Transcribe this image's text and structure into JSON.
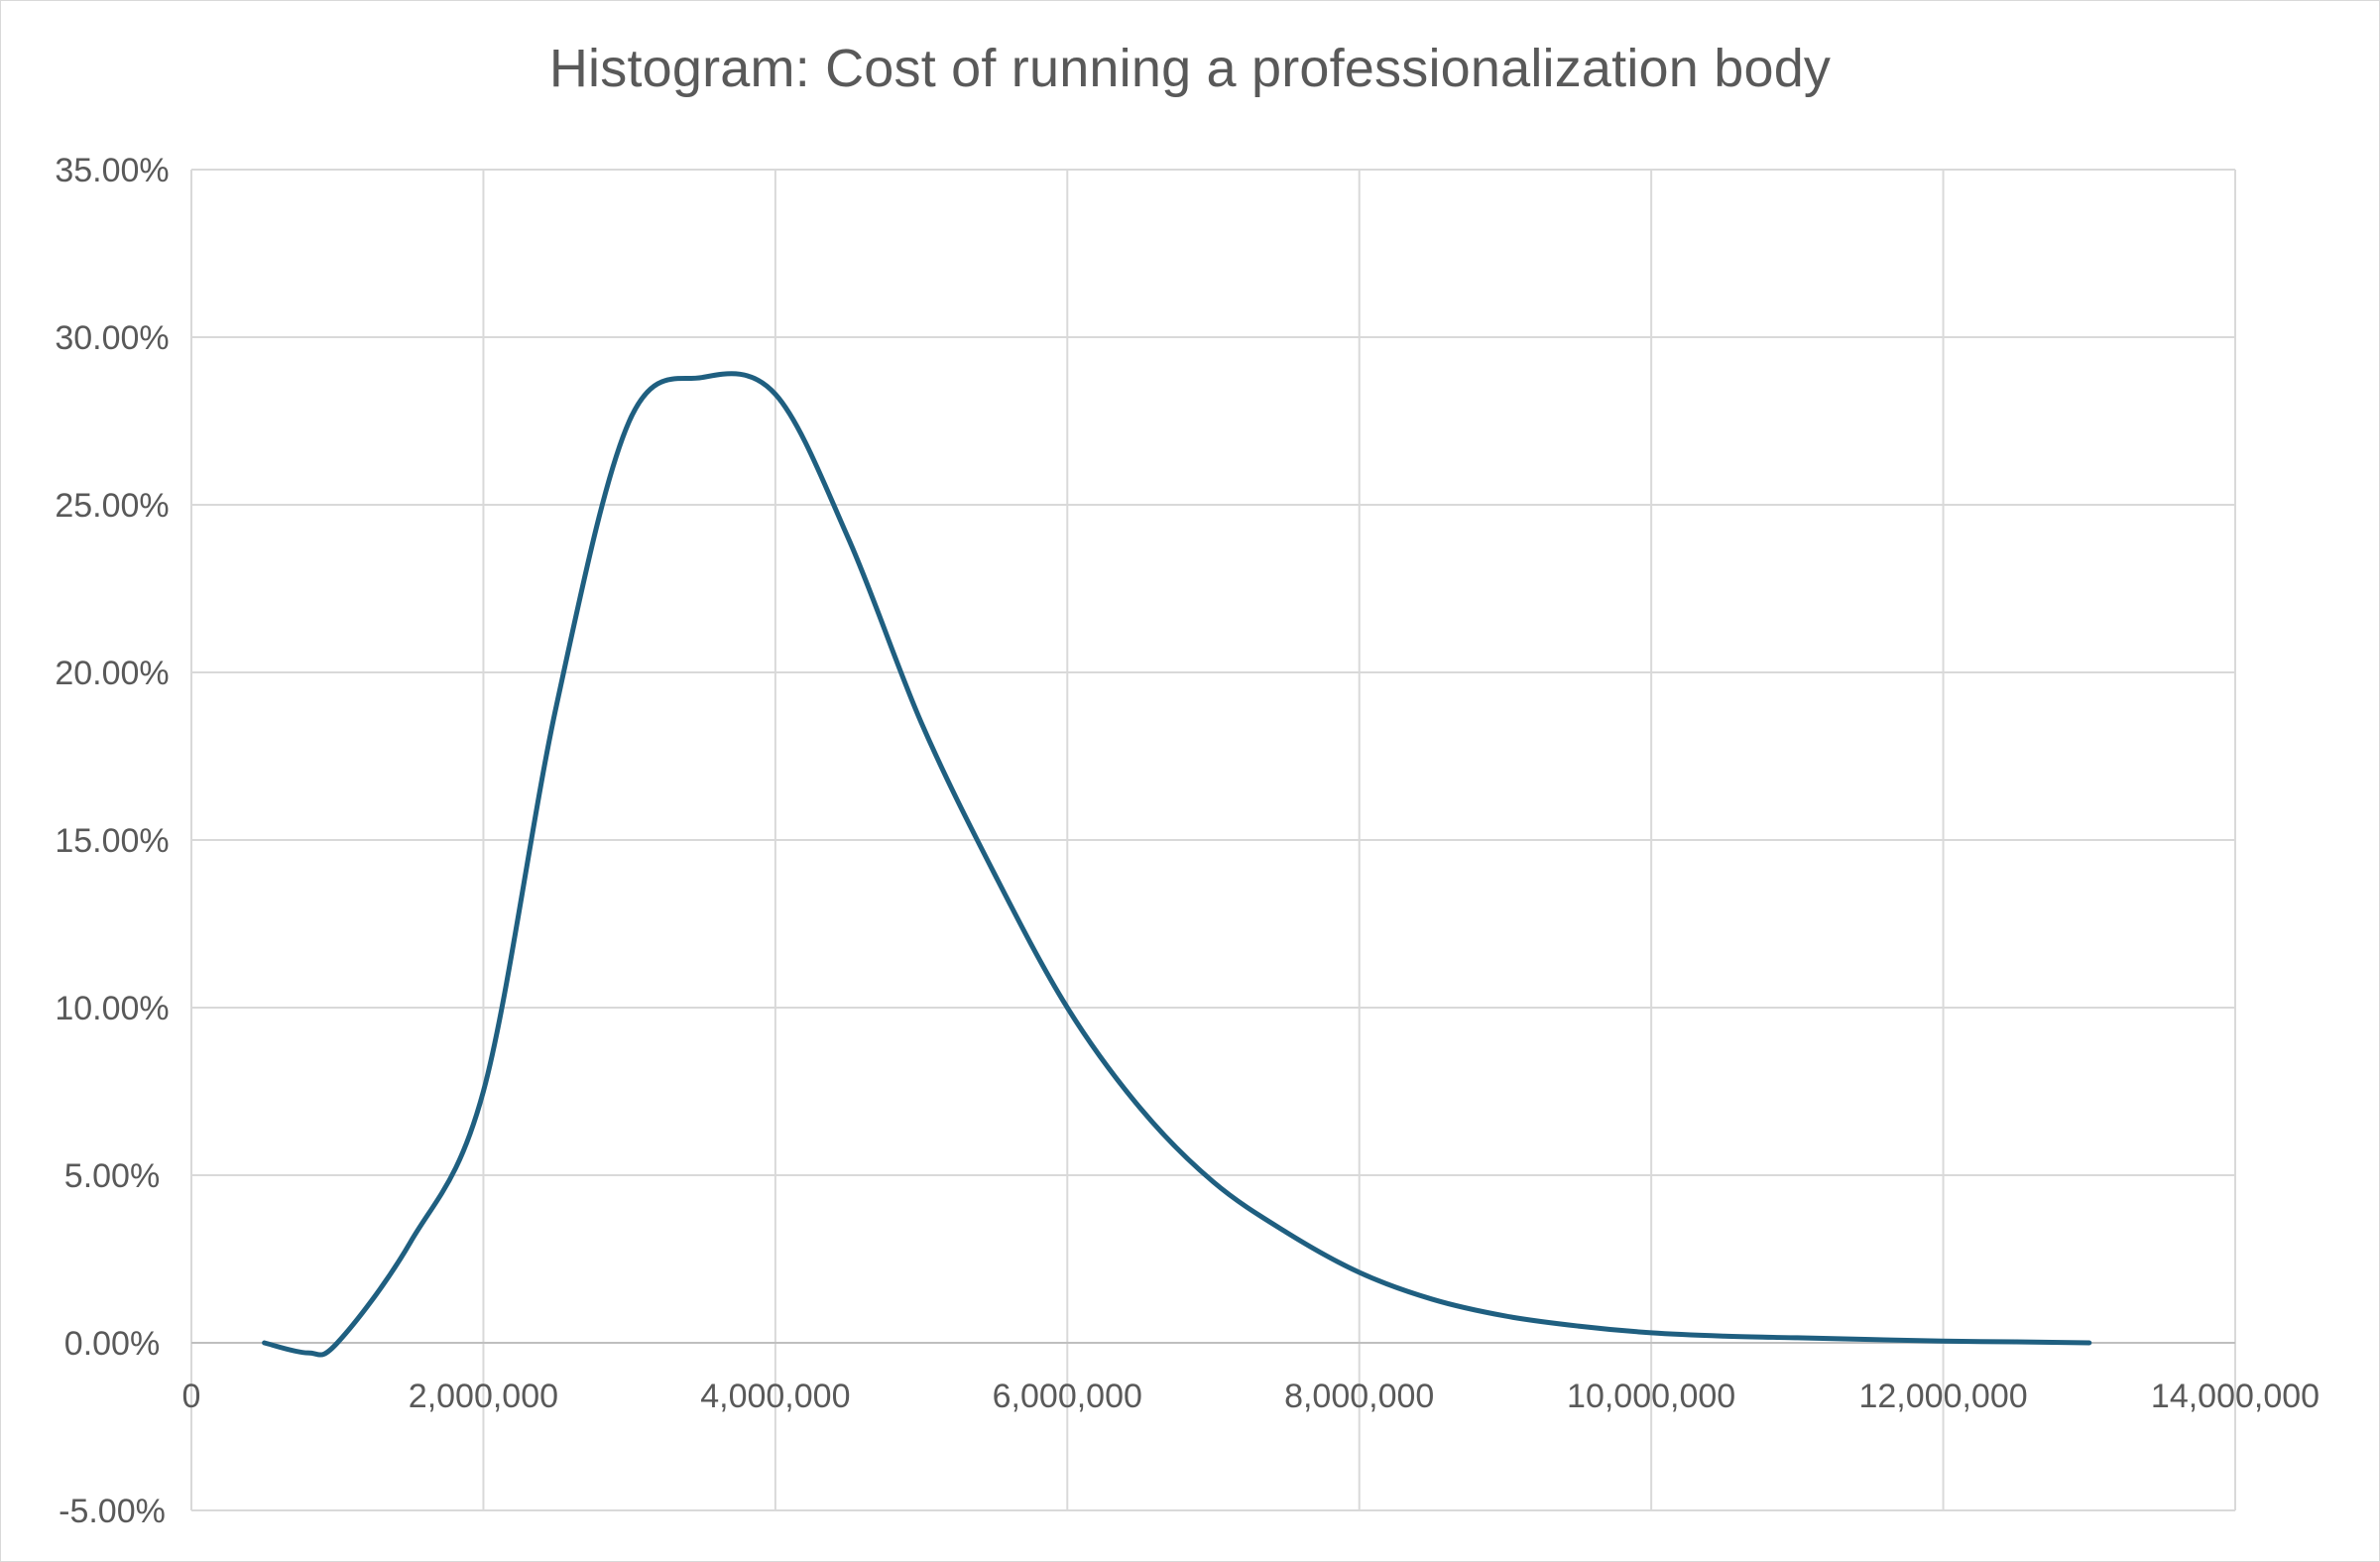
{
  "chart_data": {
    "type": "line",
    "title": "Histogram: Cost of running a professionalization body",
    "xlabel": "",
    "ylabel": "",
    "xlim": [
      0,
      14000000
    ],
    "ylim": [
      -0.05,
      0.35
    ],
    "x_ticks": [
      0,
      2000000,
      4000000,
      6000000,
      8000000,
      10000000,
      12000000,
      14000000
    ],
    "x_tick_labels": [
      "0",
      "2,000,000",
      "4,000,000",
      "6,000,000",
      "8,000,000",
      "10,000,000",
      "12,000,000",
      "14,000,000"
    ],
    "y_ticks": [
      -0.05,
      0,
      0.05,
      0.1,
      0.15,
      0.2,
      0.25,
      0.3,
      0.35
    ],
    "y_tick_labels": [
      "-5.00%",
      "0.00%",
      "5.00%",
      "10.00%",
      "15.00%",
      "20.00%",
      "25.00%",
      "30.00%",
      "35.00%"
    ],
    "grid": true,
    "legend": "none",
    "line_color": "#1f5f80",
    "series": [
      {
        "x": [
          500000,
          800000,
          1000000,
          1500000,
          2000000,
          2500000,
          3000000,
          3500000,
          4000000,
          4500000,
          5000000,
          5500000,
          6000000,
          6500000,
          7000000,
          7500000,
          8000000,
          8500000,
          9000000,
          9500000,
          10000000,
          10500000,
          11000000,
          11500000,
          12000000,
          12500000,
          13000000
        ],
        "y": [
          0.0,
          -0.003,
          0.0,
          0.03,
          0.075,
          0.19,
          0.275,
          0.288,
          0.283,
          0.24,
          0.185,
          0.14,
          0.1,
          0.07,
          0.048,
          0.033,
          0.021,
          0.013,
          0.008,
          0.005,
          0.003,
          0.002,
          0.0015,
          0.001,
          0.0005,
          0.0003,
          0.0
        ]
      }
    ]
  }
}
